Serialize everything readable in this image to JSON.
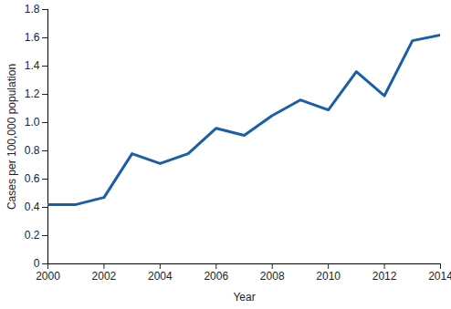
{
  "chart_data": {
    "type": "line",
    "xlabel": "Year",
    "ylabel": "Cases per 100,000 population",
    "x": [
      2000,
      2001,
      2002,
      2003,
      2004,
      2005,
      2006,
      2007,
      2008,
      2009,
      2010,
      2011,
      2012,
      2013,
      2014
    ],
    "values": [
      0.42,
      0.42,
      0.47,
      0.78,
      0.71,
      0.78,
      0.96,
      0.91,
      1.05,
      1.16,
      1.09,
      1.36,
      1.19,
      1.58,
      1.62
    ],
    "color": "#1a5ea8",
    "xlim": [
      2000,
      2014
    ],
    "xticks": [
      2000,
      2002,
      2004,
      2006,
      2008,
      2010,
      2012,
      2014
    ],
    "ylim": [
      0,
      1.8
    ],
    "yticks": [
      0,
      0.2,
      0.4,
      0.6,
      0.8,
      {
        "value": 1,
        "label": "1.0"
      },
      1.2,
      1.4,
      1.6,
      1.8
    ],
    "grid": false
  }
}
